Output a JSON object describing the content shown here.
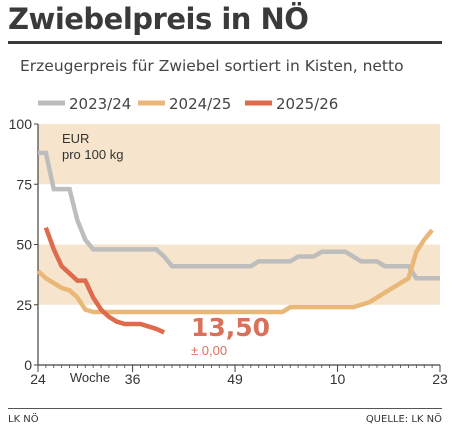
{
  "title": "Zwiebelpreis in NÖ",
  "subtitle": "Erzeugerpreis für Zwiebel sortiert in Kisten, netto",
  "footer": {
    "left": "LK NÖ",
    "right": "QUELLE: LK NÖ"
  },
  "chart_data": {
    "type": "line",
    "unit_label": [
      "EUR",
      "pro 100 kg"
    ],
    "xlabel": "Woche",
    "x_ticks": [
      "24",
      "36",
      "49",
      "10",
      "23"
    ],
    "x_tick_weeks": [
      24,
      36,
      49,
      62,
      75
    ],
    "y_ticks": [
      0,
      25,
      50,
      75,
      100
    ],
    "ylim": [
      0,
      100
    ],
    "xlim": [
      24,
      75
    ],
    "grid": "horizontal bands",
    "legend_position": "top",
    "colors": {
      "band": "#f6e4cc",
      "axis": "#444444"
    },
    "annotation": {
      "value": "13,50",
      "change": "± 0,00",
      "color": "#d9705a"
    },
    "series": [
      {
        "name": "2023/24",
        "color": "#bdbdbd",
        "x": [
          24,
          25,
          26,
          27,
          28,
          29,
          30,
          31,
          32,
          33,
          34,
          35,
          36,
          37,
          38,
          39,
          40,
          41,
          42,
          43,
          44,
          45,
          46,
          47,
          48,
          49,
          50,
          51,
          52,
          53,
          54,
          55,
          56,
          57,
          58,
          59,
          60,
          61,
          62,
          63,
          64,
          65,
          66,
          67,
          68,
          69,
          70,
          71,
          72,
          73,
          74,
          75
        ],
        "y": [
          88,
          88,
          73,
          73,
          73,
          60,
          52,
          48,
          48,
          48,
          48,
          48,
          48,
          48,
          48,
          48,
          45,
          41,
          41,
          41,
          41,
          41,
          41,
          41,
          41,
          41,
          41,
          41,
          43,
          43,
          43,
          43,
          43,
          45,
          45,
          45,
          47,
          47,
          47,
          47,
          45,
          43,
          43,
          43,
          41,
          41,
          41,
          41,
          36,
          36,
          36,
          36
        ]
      },
      {
        "name": "2024/25",
        "color": "#e9b878",
        "x": [
          24,
          25,
          26,
          27,
          28,
          29,
          30,
          31,
          32,
          33,
          34,
          35,
          36,
          37,
          38,
          39,
          40,
          41,
          42,
          43,
          44,
          45,
          46,
          47,
          48,
          49,
          50,
          51,
          52,
          53,
          54,
          55,
          56,
          57,
          58,
          59,
          60,
          61,
          62,
          63,
          64,
          65,
          66,
          67,
          68,
          69,
          70,
          71,
          72,
          73,
          74
        ],
        "y": [
          39,
          36,
          34,
          32,
          31,
          28,
          23,
          22,
          22,
          22,
          22,
          22,
          22,
          22,
          22,
          22,
          22,
          22,
          22,
          22,
          22,
          22,
          22,
          22,
          22,
          22,
          22,
          22,
          22,
          22,
          22,
          22,
          24,
          24,
          24,
          24,
          24,
          24,
          24,
          24,
          24,
          25,
          26,
          28,
          30,
          32,
          34,
          36,
          47,
          52,
          56
        ]
      },
      {
        "name": "2025/26",
        "color": "#e06a4c",
        "x": [
          25,
          26,
          27,
          28,
          29,
          30,
          31,
          32,
          33,
          34,
          35,
          36,
          37,
          38,
          39,
          40
        ],
        "y": [
          57,
          48,
          41,
          38,
          35,
          35,
          28,
          23,
          20,
          18,
          17,
          17,
          17,
          16,
          15,
          13.5
        ]
      }
    ]
  }
}
